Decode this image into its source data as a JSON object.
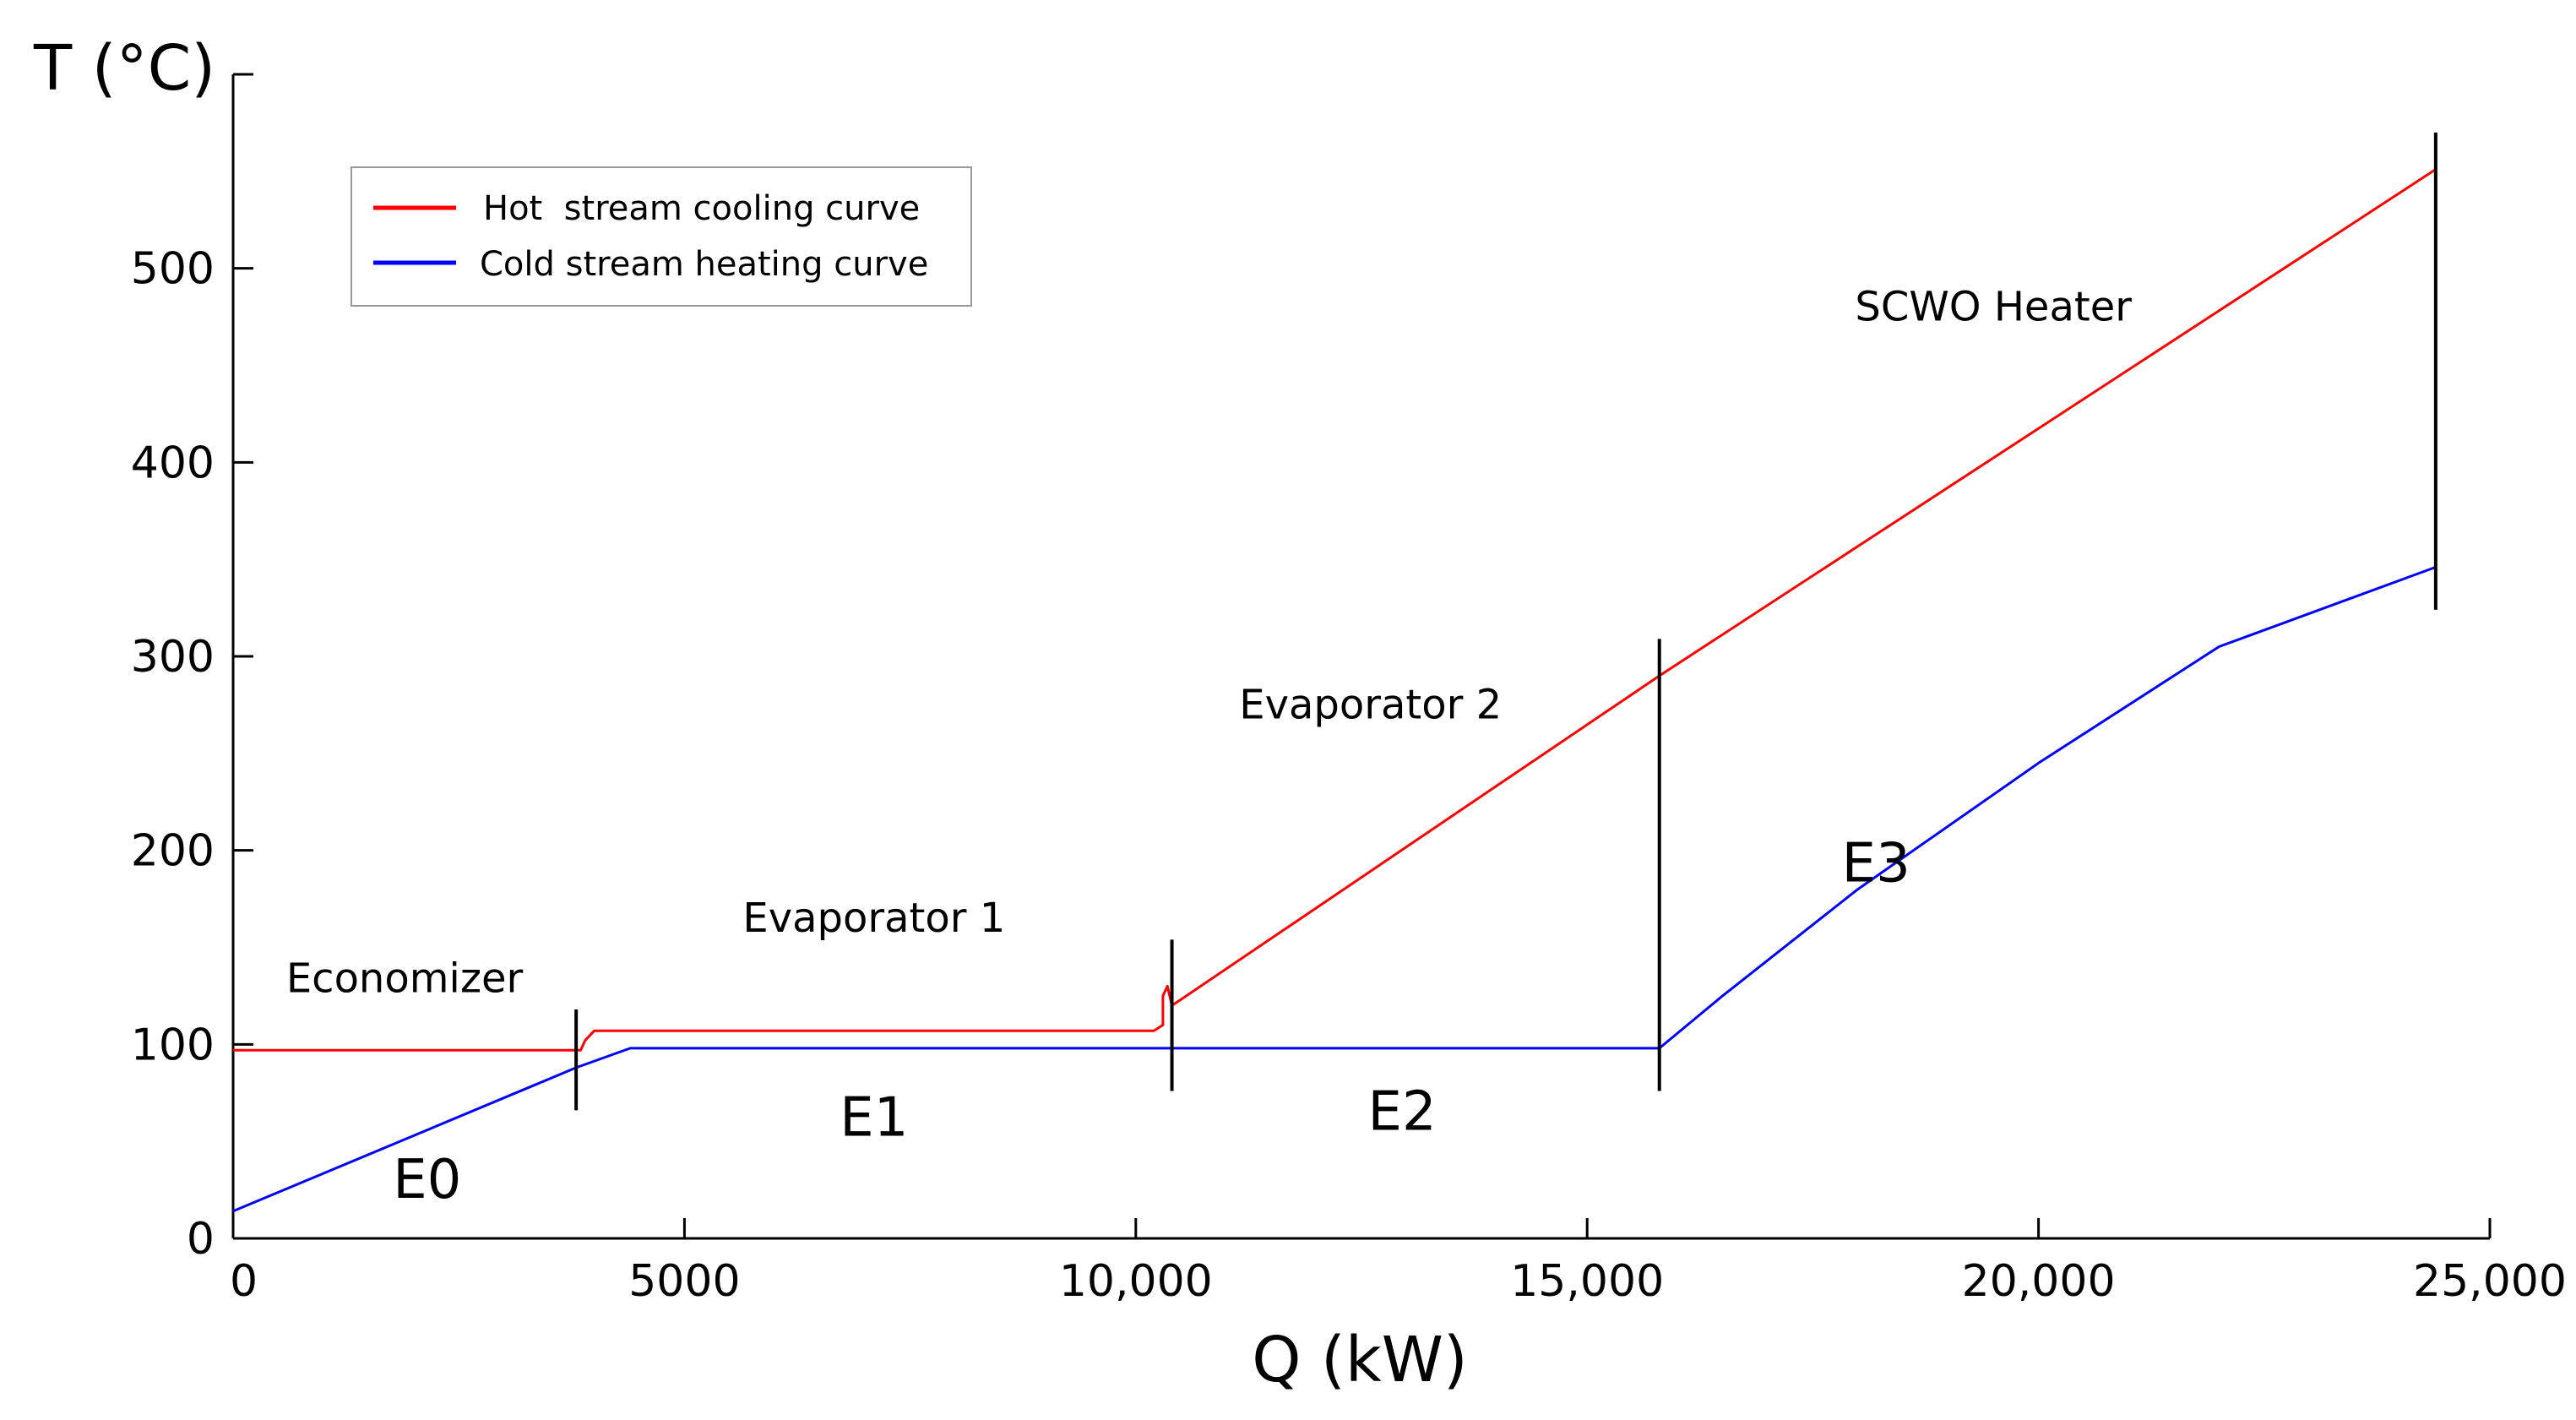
{
  "chart_data": {
    "type": "line",
    "title": "",
    "xlabel": "Q (kW)",
    "ylabel": "T (°C)",
    "xlim": [
      0,
      25000
    ],
    "ylim": [
      0,
      600
    ],
    "x_ticks": [
      0,
      5000,
      10000,
      15000,
      20000,
      25000
    ],
    "x_tick_labels": [
      "0",
      "5000",
      "10,000",
      "15,000",
      "20,000",
      "25,000"
    ],
    "y_ticks": [
      0,
      100,
      200,
      300,
      400,
      500
    ],
    "y_tick_labels": [
      "0",
      "100",
      "200",
      "300",
      "400",
      "500"
    ],
    "grid": false,
    "legend_position": "top-left",
    "series": [
      {
        "name": "Hot  stream cooling curve",
        "color": "#ff0000",
        "x": [
          0,
          3800,
          3850,
          3900,
          4000,
          10200,
          10300,
          10300,
          10350,
          10400,
          15800,
          24400
        ],
        "y": [
          97,
          97,
          97,
          102,
          107,
          107,
          110,
          125,
          130,
          120,
          290,
          551
        ]
      },
      {
        "name": "Cold stream heating curve",
        "color": "#0000ff",
        "x": [
          0,
          3800,
          4400,
          15800,
          16500,
          18000,
          20000,
          22000,
          24400
        ],
        "y": [
          14,
          88,
          98,
          98,
          125,
          180,
          245,
          305,
          346
        ]
      }
    ],
    "dividers": [
      {
        "x": 3800,
        "y_low": 66,
        "y_high": 118
      },
      {
        "x": 10400,
        "y_low": 76,
        "y_high": 154
      },
      {
        "x": 15800,
        "y_low": 76,
        "y_high": 309
      },
      {
        "x": 24400,
        "y_low": 324,
        "y_high": 570
      }
    ],
    "annotations": [
      {
        "text": "Economizer",
        "x": 1900,
        "y": 127,
        "class": "region-label"
      },
      {
        "text": "Evaporator 1",
        "x": 7100,
        "y": 158,
        "class": "region-label"
      },
      {
        "text": "Evaporator 2",
        "x": 12600,
        "y": 268,
        "class": "region-label"
      },
      {
        "text": "SCWO Heater",
        "x": 19500,
        "y": 473,
        "class": "region-label"
      },
      {
        "text": "E0",
        "x": 2150,
        "y": 21,
        "class": "hx-label"
      },
      {
        "text": "E1",
        "x": 7100,
        "y": 53,
        "class": "hx-label"
      },
      {
        "text": "E2",
        "x": 12950,
        "y": 56,
        "class": "hx-label"
      },
      {
        "text": "E3",
        "x": 18200,
        "y": 184,
        "class": "hx-label"
      }
    ]
  }
}
